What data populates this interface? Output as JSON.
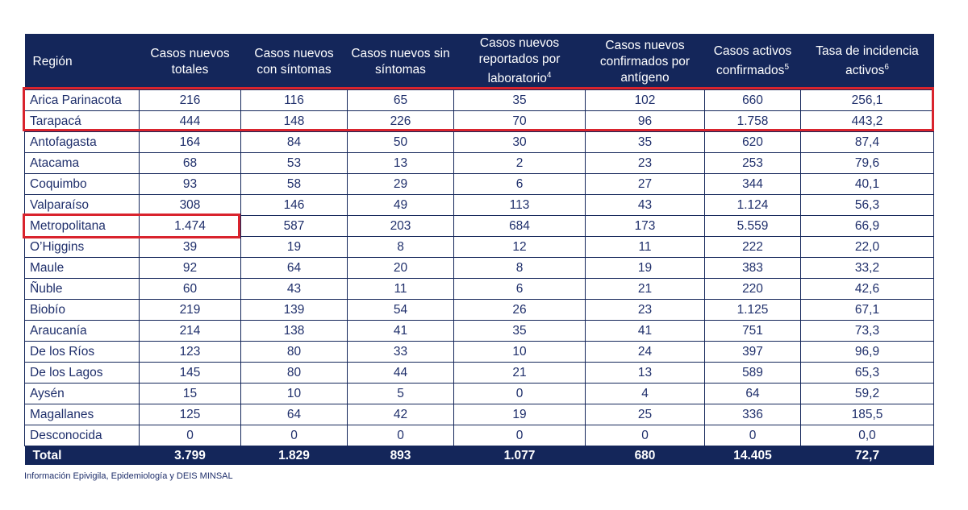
{
  "header": {
    "columns": [
      {
        "text": "Región"
      },
      {
        "text": "Casos nuevos totales"
      },
      {
        "text": "Casos nuevos con síntomas"
      },
      {
        "text": "Casos nuevos sin síntomas"
      },
      {
        "text": "Casos nuevos reportados por laboratorio",
        "sup": "4"
      },
      {
        "text": "Casos nuevos confirmados por antígeno"
      },
      {
        "text": "Casos activos confirmados",
        "sup": "5"
      },
      {
        "text": "Tasa de incidencia activos",
        "sup": "6"
      }
    ]
  },
  "table": {
    "rows": [
      [
        "Arica Parinacota",
        "216",
        "116",
        "65",
        "35",
        "102",
        "660",
        "256,1"
      ],
      [
        "Tarapacá",
        "444",
        "148",
        "226",
        "70",
        "96",
        "1.758",
        "443,2"
      ],
      [
        "Antofagasta",
        "164",
        "84",
        "50",
        "30",
        "35",
        "620",
        "87,4"
      ],
      [
        "Atacama",
        "68",
        "53",
        "13",
        "2",
        "23",
        "253",
        "79,6"
      ],
      [
        "Coquimbo",
        "93",
        "58",
        "29",
        "6",
        "27",
        "344",
        "40,1"
      ],
      [
        "Valparaíso",
        "308",
        "146",
        "49",
        "113",
        "43",
        "1.124",
        "56,3"
      ],
      [
        "Metropolitana",
        "1.474",
        "587",
        "203",
        "684",
        "173",
        "5.559",
        "66,9"
      ],
      [
        "O’Higgins",
        "39",
        "19",
        "8",
        "12",
        "11",
        "222",
        "22,0"
      ],
      [
        "Maule",
        "92",
        "64",
        "20",
        "8",
        "19",
        "383",
        "33,2"
      ],
      [
        "Ñuble",
        "60",
        "43",
        "11",
        "6",
        "21",
        "220",
        "42,6"
      ],
      [
        "Biobío",
        "219",
        "139",
        "54",
        "26",
        "23",
        "1.125",
        "67,1"
      ],
      [
        "Araucanía",
        "214",
        "138",
        "41",
        "35",
        "41",
        "751",
        "73,3"
      ],
      [
        "De los Ríos",
        "123",
        "80",
        "33",
        "10",
        "24",
        "397",
        "96,9"
      ],
      [
        "De los Lagos",
        "145",
        "80",
        "44",
        "21",
        "13",
        "589",
        "65,3"
      ],
      [
        "Aysén",
        "15",
        "10",
        "5",
        "0",
        "4",
        "64",
        "59,2"
      ],
      [
        "Magallanes",
        "125",
        "64",
        "42",
        "19",
        "25",
        "336",
        "185,5"
      ],
      [
        "Desconocida",
        "0",
        "0",
        "0",
        "0",
        "0",
        "0",
        "0,0"
      ]
    ],
    "total": [
      "Total",
      "3.799",
      "1.829",
      "893",
      "1.077",
      "680",
      "14.405",
      "72,7"
    ]
  },
  "footnote": "Información Epivigila, Epidemiología y DEIS MINSAL"
}
